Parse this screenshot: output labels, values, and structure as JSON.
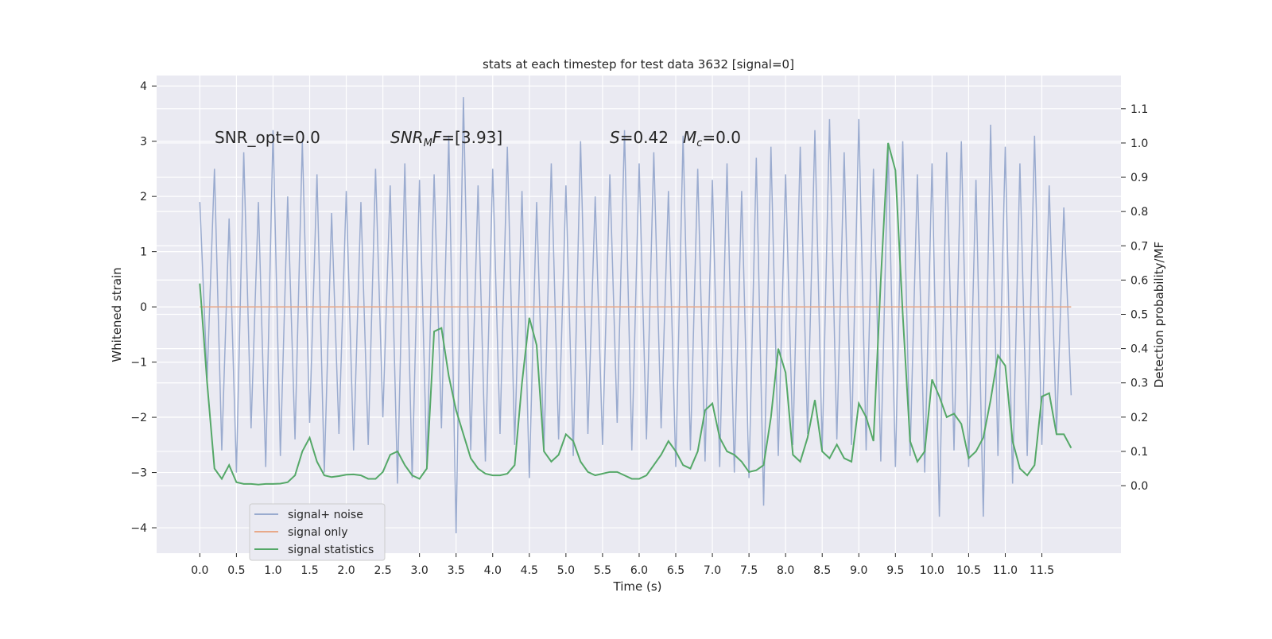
{
  "chart_data": {
    "type": "line",
    "title": "stats at each timestep for test data 3632 [signal=0]",
    "xlabel": "Time (s)",
    "ylabel": "Whitened strain",
    "y2label": "Detection probability/MF",
    "annotations": [
      {
        "segments": [
          {
            "text": "SNR_opt=0.0"
          }
        ]
      },
      {
        "segments": [
          {
            "text": "SNR",
            "style": "italic"
          },
          {
            "text": "M",
            "style": "italic-sub"
          },
          {
            "text": "F",
            "style": "italic"
          },
          {
            "text": "=[3.93]"
          }
        ]
      },
      {
        "segments": [
          {
            "text": "S",
            "style": "italic"
          },
          {
            "text": "=0.42"
          }
        ]
      },
      {
        "segments": [
          {
            "text": "M",
            "style": "italic"
          },
          {
            "text": "c",
            "style": "italic-sub"
          },
          {
            "text": "=0.0"
          }
        ]
      }
    ],
    "x": [
      0.0,
      0.1,
      0.2,
      0.3,
      0.4,
      0.5,
      0.6,
      0.7,
      0.8,
      0.9,
      1.0,
      1.1,
      1.2,
      1.3,
      1.4,
      1.5,
      1.6,
      1.7,
      1.8,
      1.9,
      2.0,
      2.1,
      2.2,
      2.3,
      2.4,
      2.5,
      2.6,
      2.7,
      2.8,
      2.9,
      3.0,
      3.1,
      3.2,
      3.3,
      3.4,
      3.5,
      3.6,
      3.7,
      3.8,
      3.9,
      4.0,
      4.1,
      4.2,
      4.3,
      4.4,
      4.5,
      4.6,
      4.7,
      4.8,
      4.9,
      5.0,
      5.1,
      5.2,
      5.3,
      5.4,
      5.5,
      5.6,
      5.7,
      5.8,
      5.9,
      6.0,
      6.1,
      6.2,
      6.3,
      6.4,
      6.5,
      6.6,
      6.7,
      6.8,
      6.9,
      7.0,
      7.1,
      7.2,
      7.3,
      7.4,
      7.5,
      7.6,
      7.7,
      7.8,
      7.9,
      8.0,
      8.1,
      8.2,
      8.3,
      8.4,
      8.5,
      8.6,
      8.7,
      8.8,
      8.9,
      9.0,
      9.1,
      9.2,
      9.3,
      9.4,
      9.5,
      9.6,
      9.7,
      9.8,
      9.9,
      10.0,
      10.1,
      10.2,
      10.3,
      10.4,
      10.5,
      10.6,
      10.7,
      10.8,
      10.9,
      11.0,
      11.1,
      11.2,
      11.3,
      11.4,
      11.5,
      11.6,
      11.7,
      11.8,
      11.9
    ],
    "series": [
      {
        "name": "signal+ noise",
        "color": "#9aabcf",
        "axis": "y",
        "values": [
          1.9,
          -1.3,
          2.5,
          -2.6,
          1.6,
          -3.0,
          2.8,
          -2.2,
          1.9,
          -2.9,
          3.2,
          -2.7,
          2.0,
          -2.4,
          3.0,
          -2.1,
          2.4,
          -3.0,
          1.7,
          -2.3,
          2.1,
          -2.6,
          1.9,
          -2.5,
          2.5,
          -2.0,
          2.2,
          -3.2,
          2.6,
          -3.1,
          2.3,
          -2.9,
          2.4,
          -2.2,
          3.1,
          -4.1,
          3.8,
          -2.6,
          2.2,
          -2.8,
          2.5,
          -2.3,
          2.9,
          -2.5,
          2.1,
          -3.1,
          1.9,
          -2.6,
          2.6,
          -2.4,
          2.2,
          -2.7,
          3.0,
          -2.3,
          2.0,
          -2.5,
          2.4,
          -2.1,
          3.2,
          -2.6,
          2.6,
          -2.4,
          2.8,
          -2.2,
          2.1,
          -2.9,
          3.1,
          -2.6,
          2.5,
          -2.8,
          2.3,
          -2.9,
          2.6,
          -3.0,
          2.1,
          -3.1,
          2.7,
          -3.6,
          2.9,
          -2.7,
          2.4,
          -2.5,
          2.9,
          -2.3,
          3.2,
          -2.6,
          3.4,
          -2.4,
          2.8,
          -2.5,
          3.4,
          -2.6,
          2.5,
          -2.8,
          2.9,
          -2.9,
          3.0,
          -2.7,
          2.4,
          -3.0,
          2.6,
          -3.8,
          2.8,
          -2.6,
          3.0,
          -2.9,
          2.3,
          -3.8,
          3.3,
          -2.7,
          2.9,
          -3.2,
          2.6,
          -2.7,
          3.1,
          -2.5,
          2.2,
          -2.3,
          1.8,
          -1.6
        ]
      },
      {
        "name": "signal only",
        "color": "#e8a98a",
        "axis": "y",
        "values": [
          0,
          0,
          0,
          0,
          0,
          0,
          0,
          0,
          0,
          0,
          0,
          0,
          0,
          0,
          0,
          0,
          0,
          0,
          0,
          0,
          0,
          0,
          0,
          0,
          0,
          0,
          0,
          0,
          0,
          0,
          0,
          0,
          0,
          0,
          0,
          0,
          0,
          0,
          0,
          0,
          0,
          0,
          0,
          0,
          0,
          0,
          0,
          0,
          0,
          0,
          0,
          0,
          0,
          0,
          0,
          0,
          0,
          0,
          0,
          0,
          0,
          0,
          0,
          0,
          0,
          0,
          0,
          0,
          0,
          0,
          0,
          0,
          0,
          0,
          0,
          0,
          0,
          0,
          0,
          0,
          0,
          0,
          0,
          0,
          0,
          0,
          0,
          0,
          0,
          0,
          0,
          0,
          0,
          0,
          0,
          0,
          0,
          0,
          0,
          0,
          0,
          0,
          0,
          0,
          0,
          0,
          0,
          0,
          0,
          0,
          0,
          0,
          0,
          0,
          0,
          0,
          0,
          0,
          0,
          0
        ]
      },
      {
        "name": "signal statistics",
        "color": "#55a868",
        "axis": "y2",
        "values": [
          0.59,
          0.3,
          0.05,
          0.02,
          0.06,
          0.01,
          0.005,
          0.005,
          0.003,
          0.005,
          0.005,
          0.006,
          0.01,
          0.03,
          0.1,
          0.14,
          0.07,
          0.03,
          0.025,
          0.028,
          0.032,
          0.033,
          0.03,
          0.02,
          0.02,
          0.04,
          0.09,
          0.1,
          0.06,
          0.03,
          0.02,
          0.05,
          0.45,
          0.46,
          0.32,
          0.22,
          0.15,
          0.08,
          0.05,
          0.035,
          0.03,
          0.03,
          0.035,
          0.06,
          0.3,
          0.49,
          0.41,
          0.1,
          0.07,
          0.09,
          0.15,
          0.13,
          0.07,
          0.04,
          0.03,
          0.035,
          0.04,
          0.04,
          0.03,
          0.02,
          0.02,
          0.03,
          0.06,
          0.09,
          0.13,
          0.1,
          0.06,
          0.05,
          0.1,
          0.22,
          0.24,
          0.14,
          0.1,
          0.09,
          0.07,
          0.04,
          0.045,
          0.06,
          0.2,
          0.4,
          0.33,
          0.09,
          0.07,
          0.14,
          0.25,
          0.1,
          0.08,
          0.12,
          0.08,
          0.07,
          0.24,
          0.2,
          0.13,
          0.6,
          1.0,
          0.92,
          0.5,
          0.13,
          0.07,
          0.1,
          0.31,
          0.26,
          0.2,
          0.21,
          0.18,
          0.08,
          0.1,
          0.14,
          0.25,
          0.38,
          0.35,
          0.13,
          0.05,
          0.03,
          0.06,
          0.26,
          0.27,
          0.15,
          0.15,
          0.11
        ]
      }
    ],
    "xlim": [
      -0.59,
      12.58
    ],
    "xticks": [
      {
        "value": 0,
        "label": "0.0"
      },
      0.5,
      {
        "value": 1,
        "label": "1.0"
      },
      1.5,
      {
        "value": 2,
        "label": "2.0"
      },
      2.5,
      {
        "value": 3,
        "label": "3.0"
      },
      3.5,
      {
        "value": 4,
        "label": "4.0"
      },
      4.5,
      {
        "value": 5,
        "label": "5.0"
      },
      5.5,
      {
        "value": 6,
        "label": "6.0"
      },
      6.5,
      {
        "value": 7,
        "label": "7.0"
      },
      7.5,
      {
        "value": 8,
        "label": "8.0"
      },
      8.5,
      {
        "value": 9,
        "label": "9.0"
      },
      9.5,
      {
        "value": 10,
        "label": "10.0"
      },
      10.5,
      {
        "value": 11,
        "label": "11.0"
      },
      11.5
    ],
    "ylim": [
      -4.46,
      4.19
    ],
    "yticks": [
      {
        "value": -4,
        "label": "−4"
      },
      {
        "value": -3,
        "label": "−3"
      },
      {
        "value": -2,
        "label": "−2"
      },
      {
        "value": -1,
        "label": "−1"
      },
      0,
      1,
      2,
      3,
      4
    ],
    "y2lim": [
      -0.197,
      1.197
    ],
    "y2ticks": [
      {
        "value": 0,
        "label": "0.0"
      },
      0.1,
      0.2,
      0.3,
      0.4,
      0.5,
      0.6,
      0.7,
      0.8,
      0.9,
      {
        "value": 1,
        "label": "1.0"
      },
      1.1
    ],
    "grid": true,
    "legend": "lower left",
    "background": "#eaeaf2"
  }
}
